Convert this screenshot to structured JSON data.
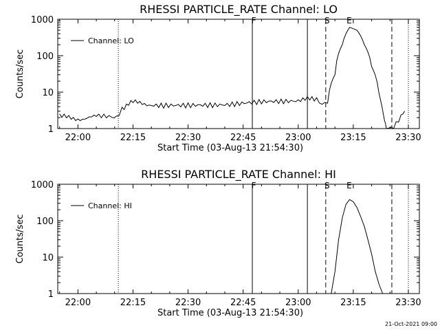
{
  "footer_stamp": "21-Oct-2021 09:00",
  "chart_data": [
    {
      "type": "line",
      "title": "RHESSI PARTICLE_RATE Channel: LO",
      "xlabel": "Start Time (03-Aug-13 21:54:30)",
      "ylabel": "Counts/sec",
      "y_scale": "log",
      "ylim": [
        1,
        1000
      ],
      "xlim": [
        "21:54:30",
        "23:33:00"
      ],
      "x_ticks": [
        "22:00",
        "22:15",
        "22:30",
        "22:45",
        "23:00",
        "23:15",
        "23:30"
      ],
      "y_ticks": [
        "1",
        "10",
        "100",
        "1000"
      ],
      "legend": {
        "label": "Channel: LO",
        "placement": "top-left"
      },
      "markers": [
        {
          "time": "22:11:00",
          "style": "dotted",
          "label": ""
        },
        {
          "time": "22:47:30",
          "style": "solid",
          "label": "F"
        },
        {
          "time": "23:02:30",
          "style": "solid",
          "label": ""
        },
        {
          "time": "23:07:30",
          "style": "dashed",
          "label": "S"
        },
        {
          "time": "23:13:30",
          "style": "none",
          "label": "E"
        },
        {
          "time": "23:25:30",
          "style": "dashed",
          "label": ""
        },
        {
          "time": "23:30:00",
          "style": "dotted",
          "label": ""
        }
      ],
      "series": [
        {
          "name": "Channel: LO",
          "x": [
            "21:55:00",
            "22:00:00",
            "22:05:00",
            "22:10:30",
            "22:12:00",
            "22:15:00",
            "22:20:00",
            "22:30:00",
            "22:40:00",
            "22:50:00",
            "23:00:00",
            "23:05:00",
            "23:06:30",
            "23:08:00",
            "23:10:00",
            "23:12:00",
            "23:14:00",
            "23:16:00",
            "23:18:00",
            "23:20:00",
            "23:22:00",
            "23:23:30",
            "23:24:00",
            "23:26:00",
            "23:28:00",
            "23:29:00"
          ],
          "values": [
            2,
            2,
            2,
            2,
            4,
            5,
            5,
            5,
            5,
            6,
            6,
            6,
            4,
            5,
            30,
            200,
            600,
            500,
            200,
            50,
            8,
            2,
            1,
            1,
            2,
            3
          ]
        }
      ]
    },
    {
      "type": "line",
      "title": "RHESSI PARTICLE_RATE Channel: HI",
      "xlabel": "Start Time (03-Aug-13 21:54:30)",
      "ylabel": "Counts/sec",
      "y_scale": "log",
      "ylim": [
        1,
        1000
      ],
      "xlim": [
        "21:54:30",
        "23:33:00"
      ],
      "x_ticks": [
        "22:00",
        "22:15",
        "22:30",
        "22:45",
        "23:00",
        "23:15",
        "23:30"
      ],
      "y_ticks": [
        "1",
        "10",
        "100",
        "1000"
      ],
      "legend": {
        "label": "Channel: HI",
        "placement": "top-left"
      },
      "markers": [
        {
          "time": "22:11:00",
          "style": "dotted",
          "label": ""
        },
        {
          "time": "22:47:30",
          "style": "solid",
          "label": "F"
        },
        {
          "time": "23:02:30",
          "style": "solid",
          "label": ""
        },
        {
          "time": "23:07:30",
          "style": "dashed",
          "label": "S"
        },
        {
          "time": "23:13:30",
          "style": "none",
          "label": "E"
        },
        {
          "time": "23:25:30",
          "style": "dashed",
          "label": ""
        },
        {
          "time": "23:30:00",
          "style": "dotted",
          "label": ""
        }
      ],
      "series": [
        {
          "name": "Channel: HI",
          "x": [
            "23:09:00",
            "23:10:00",
            "23:11:00",
            "23:12:00",
            "23:13:00",
            "23:14:00",
            "23:15:00",
            "23:16:00",
            "23:17:00",
            "23:18:00",
            "23:19:00",
            "23:20:00",
            "23:21:00",
            "23:22:00",
            "23:23:00"
          ],
          "values": [
            1,
            4,
            30,
            120,
            280,
            380,
            330,
            230,
            130,
            70,
            30,
            12,
            4,
            1.8,
            1
          ]
        }
      ]
    }
  ]
}
